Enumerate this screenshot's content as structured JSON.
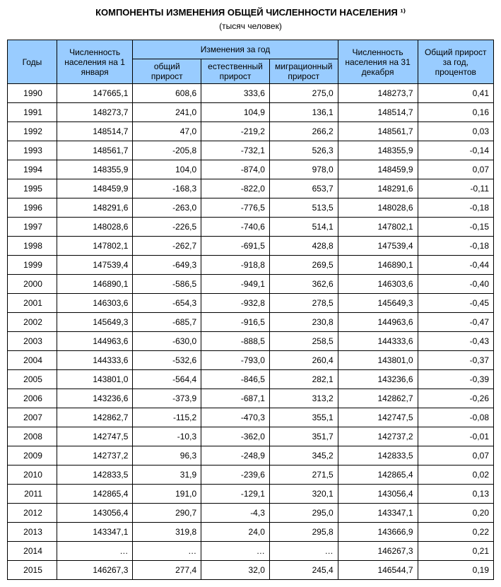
{
  "title": "КОМПОНЕНТЫ ИЗМЕНЕНИЯ ОБЩЕЙ ЧИСЛЕННОСТИ НАСЕЛЕНИЯ ¹⁾",
  "subtitle": "(тысяч человек)",
  "header_bg_color": "#99ccff",
  "border_color": "#000000",
  "font_size": 12,
  "columns": {
    "year": "Годы",
    "pop_jan": "Численность населения на 1 января",
    "changes_group": "Изменения за год",
    "total_growth": "общий прирост",
    "natural_growth": "естественный прирост",
    "migration_growth": "миграционный прирост",
    "pop_dec": "Численность населения на 31 декабря",
    "pct_growth": "Общий прирост за год, процентов"
  },
  "rows": [
    {
      "year": "1990",
      "pop_jan": "147665,1",
      "total": "608,6",
      "natural": "333,6",
      "migration": "275,0",
      "pop_dec": "148273,7",
      "pct": "0,41"
    },
    {
      "year": "1991",
      "pop_jan": "148273,7",
      "total": "241,0",
      "natural": "104,9",
      "migration": "136,1",
      "pop_dec": "148514,7",
      "pct": "0,16"
    },
    {
      "year": "1992",
      "pop_jan": "148514,7",
      "total": "47,0",
      "natural": "-219,2",
      "migration": "266,2",
      "pop_dec": "148561,7",
      "pct": "0,03"
    },
    {
      "year": "1993",
      "pop_jan": "148561,7",
      "total": "-205,8",
      "natural": "-732,1",
      "migration": "526,3",
      "pop_dec": "148355,9",
      "pct": "-0,14"
    },
    {
      "year": "1994",
      "pop_jan": "148355,9",
      "total": "104,0",
      "natural": "-874,0",
      "migration": "978,0",
      "pop_dec": "148459,9",
      "pct": "0,07"
    },
    {
      "year": "1995",
      "pop_jan": "148459,9",
      "total": "-168,3",
      "natural": "-822,0",
      "migration": "653,7",
      "pop_dec": "148291,6",
      "pct": "-0,11"
    },
    {
      "year": "1996",
      "pop_jan": "148291,6",
      "total": "-263,0",
      "natural": "-776,5",
      "migration": "513,5",
      "pop_dec": "148028,6",
      "pct": "-0,18"
    },
    {
      "year": "1997",
      "pop_jan": "148028,6",
      "total": "-226,5",
      "natural": "-740,6",
      "migration": "514,1",
      "pop_dec": "147802,1",
      "pct": "-0,15"
    },
    {
      "year": "1998",
      "pop_jan": "147802,1",
      "total": "-262,7",
      "natural": "-691,5",
      "migration": "428,8",
      "pop_dec": "147539,4",
      "pct": "-0,18"
    },
    {
      "year": "1999",
      "pop_jan": "147539,4",
      "total": "-649,3",
      "natural": "-918,8",
      "migration": "269,5",
      "pop_dec": "146890,1",
      "pct": "-0,44"
    },
    {
      "year": "2000",
      "pop_jan": "146890,1",
      "total": "-586,5",
      "natural": "-949,1",
      "migration": "362,6",
      "pop_dec": "146303,6",
      "pct": "-0,40"
    },
    {
      "year": "2001",
      "pop_jan": "146303,6",
      "total": "-654,3",
      "natural": "-932,8",
      "migration": "278,5",
      "pop_dec": "145649,3",
      "pct": "-0,45"
    },
    {
      "year": "2002",
      "pop_jan": "145649,3",
      "total": "-685,7",
      "natural": "-916,5",
      "migration": "230,8",
      "pop_dec": "144963,6",
      "pct": "-0,47"
    },
    {
      "year": "2003",
      "pop_jan": "144963,6",
      "total": "-630,0",
      "natural": "-888,5",
      "migration": "258,5",
      "pop_dec": "144333,6",
      "pct": "-0,43"
    },
    {
      "year": "2004",
      "pop_jan": "144333,6",
      "total": "-532,6",
      "natural": "-793,0",
      "migration": "260,4",
      "pop_dec": "143801,0",
      "pct": "-0,37"
    },
    {
      "year": "2005",
      "pop_jan": "143801,0",
      "total": "-564,4",
      "natural": "-846,5",
      "migration": "282,1",
      "pop_dec": "143236,6",
      "pct": "-0,39"
    },
    {
      "year": "2006",
      "pop_jan": "143236,6",
      "total": "-373,9",
      "natural": "-687,1",
      "migration": "313,2",
      "pop_dec": "142862,7",
      "pct": "-0,26"
    },
    {
      "year": "2007",
      "pop_jan": "142862,7",
      "total": "-115,2",
      "natural": "-470,3",
      "migration": "355,1",
      "pop_dec": "142747,5",
      "pct": "-0,08"
    },
    {
      "year": "2008",
      "pop_jan": "142747,5",
      "total": "-10,3",
      "natural": "-362,0",
      "migration": "351,7",
      "pop_dec": "142737,2",
      "pct": "-0,01"
    },
    {
      "year": "2009",
      "pop_jan": "142737,2",
      "total": "96,3",
      "natural": "-248,9",
      "migration": "345,2",
      "pop_dec": "142833,5",
      "pct": "0,07"
    },
    {
      "year": "2010",
      "pop_jan": "142833,5",
      "total": "31,9",
      "natural": "-239,6",
      "migration": "271,5",
      "pop_dec": "142865,4",
      "pct": "0,02"
    },
    {
      "year": "2011",
      "pop_jan": "142865,4",
      "total": "191,0",
      "natural": "-129,1",
      "migration": "320,1",
      "pop_dec": "143056,4",
      "pct": "0,13"
    },
    {
      "year": "2012",
      "pop_jan": "143056,4",
      "total": "290,7",
      "natural": "-4,3",
      "migration": "295,0",
      "pop_dec": "143347,1",
      "pct": "0,20"
    },
    {
      "year": "2013",
      "pop_jan": "143347,1",
      "total": "319,8",
      "natural": "24,0",
      "migration": "295,8",
      "pop_dec": "143666,9",
      "pct": "0,22"
    },
    {
      "year": "2014",
      "pop_jan": "…",
      "total": "…",
      "natural": "…",
      "migration": "…",
      "pop_dec": "146267,3",
      "pct": "0,21"
    },
    {
      "year": "2015",
      "pop_jan": "146267,3",
      "total": "277,4",
      "natural": "32,0",
      "migration": "245,4",
      "pop_dec": "146544,7",
      "pct": "0,19"
    }
  ]
}
